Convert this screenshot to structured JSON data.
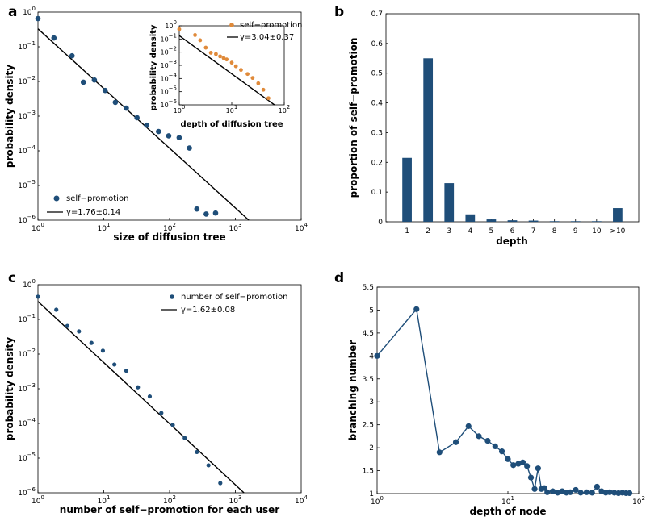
{
  "colors": {
    "blue": "#1f4e79",
    "orange": "#e08a3a",
    "fit": "#000000"
  },
  "chart_data": [
    {
      "panel": "a",
      "type": "scatter",
      "scale": "log-log",
      "xlabel": "size of diffusion tree",
      "ylabel": "probability density",
      "xlim": [
        1,
        10000
      ],
      "ylim": [
        1e-06,
        1
      ],
      "xticks": [
        {
          "v": 1,
          "base": "10",
          "exp": "0"
        },
        {
          "v": 10,
          "base": "10",
          "exp": "1"
        },
        {
          "v": 100,
          "base": "10",
          "exp": "2"
        },
        {
          "v": 1000,
          "base": "10",
          "exp": "3"
        },
        {
          "v": 10000,
          "base": "10",
          "exp": "4"
        }
      ],
      "yticks": [
        {
          "v": 1e-06,
          "base": "10",
          "exp": "−6"
        },
        {
          "v": 1e-05,
          "base": "10",
          "exp": "−5"
        },
        {
          "v": 0.0001,
          "base": "10",
          "exp": "−4"
        },
        {
          "v": 0.001,
          "base": "10",
          "exp": "−3"
        },
        {
          "v": 0.01,
          "base": "10",
          "exp": "−2"
        },
        {
          "v": 0.1,
          "base": "10",
          "exp": "−1"
        },
        {
          "v": 1,
          "base": "10",
          "exp": "0"
        }
      ],
      "series": [
        {
          "name": "self−promotion",
          "points": [
            [
              1,
              0.65
            ],
            [
              1.75,
              0.18
            ],
            [
              3.3,
              0.055
            ],
            [
              4.9,
              0.0095
            ],
            [
              7.2,
              0.011
            ],
            [
              10.5,
              0.0055
            ],
            [
              15,
              0.0025
            ],
            [
              22,
              0.0017
            ],
            [
              32,
              0.0009
            ],
            [
              45,
              0.00055
            ],
            [
              68,
              0.00036
            ],
            [
              97,
              0.00027
            ],
            [
              140,
              0.00024
            ],
            [
              200,
              0.00012
            ],
            [
              260,
              2.1e-06
            ],
            [
              360,
              1.5e-06
            ],
            [
              500,
              1.6e-06
            ]
          ]
        }
      ],
      "fit": {
        "label": "γ=1.76±0.14",
        "x": [
          1,
          1600
        ],
        "y": [
          0.33,
          1e-06
        ]
      },
      "legend": "bottom-left",
      "inset": {
        "type": "scatter",
        "scale": "log-log",
        "xlabel": "depth of diffusion tree",
        "ylabel": "probability density",
        "xlim": [
          1,
          100
        ],
        "ylim": [
          1e-06,
          1
        ],
        "xticks": [
          {
            "v": 1,
            "base": "10",
            "exp": "0"
          },
          {
            "v": 10,
            "base": "10",
            "exp": "1"
          },
          {
            "v": 100,
            "base": "10",
            "exp": "2"
          }
        ],
        "yticks": [
          {
            "v": 1e-06,
            "base": "10",
            "exp": "−6"
          },
          {
            "v": 1e-05,
            "base": "10",
            "exp": "−5"
          },
          {
            "v": 0.0001,
            "base": "10",
            "exp": "−4"
          },
          {
            "v": 0.001,
            "base": "10",
            "exp": "−3"
          },
          {
            "v": 0.01,
            "base": "10",
            "exp": "−2"
          },
          {
            "v": 0.1,
            "base": "10",
            "exp": "−1"
          },
          {
            "v": 1,
            "base": "10",
            "exp": "0"
          }
        ],
        "series": [
          {
            "name": "self−promotion",
            "points": [
              [
                1,
                0.55
              ],
              [
                2,
                0.2
              ],
              [
                2.5,
                0.08
              ],
              [
                3.2,
                0.022
              ],
              [
                4,
                0.009
              ],
              [
                5,
                0.0072
              ],
              [
                6,
                0.0048
              ],
              [
                7,
                0.0036
              ],
              [
                8,
                0.0028
              ],
              [
                10,
                0.0016
              ],
              [
                12,
                0.00085
              ],
              [
                15,
                0.00045
              ],
              [
                20,
                0.00022
              ],
              [
                25,
                0.00011
              ],
              [
                32,
                4.3e-05
              ],
              [
                40,
                1.4e-05
              ],
              [
                50,
                3.2e-06
              ]
            ]
          }
        ],
        "fit": {
          "label": "γ=3.04±0.37",
          "x": [
            1,
            65
          ],
          "y": [
            0.18,
            1e-06
          ]
        },
        "legend": "top-right"
      }
    },
    {
      "panel": "b",
      "type": "bar",
      "xlabel": "depth",
      "ylabel": "proportion of self−promotion",
      "categories": [
        "1",
        "2",
        "3",
        "4",
        "5",
        "6",
        "7",
        "8",
        "9",
        "10",
        ">10"
      ],
      "values": [
        0.215,
        0.55,
        0.13,
        0.025,
        0.008,
        0.005,
        0.004,
        0.002,
        0.002,
        0.002,
        0.046
      ],
      "ylim": [
        0,
        0.7
      ],
      "yticks": [
        "0",
        "0.1",
        "0.2",
        "0.3",
        "0.4",
        "0.5",
        "0.6",
        "0.7"
      ]
    },
    {
      "panel": "c",
      "type": "scatter",
      "scale": "log-log",
      "xlabel": "number of self−promotion for each user",
      "ylabel": "probability density",
      "xlim": [
        1,
        10000
      ],
      "ylim": [
        1e-06,
        1
      ],
      "xticks": [
        {
          "v": 1,
          "base": "10",
          "exp": "0"
        },
        {
          "v": 10,
          "base": "10",
          "exp": "1"
        },
        {
          "v": 100,
          "base": "10",
          "exp": "2"
        },
        {
          "v": 1000,
          "base": "10",
          "exp": "3"
        },
        {
          "v": 10000,
          "base": "10",
          "exp": "4"
        }
      ],
      "yticks": [
        {
          "v": 1e-06,
          "base": "10",
          "exp": "−6"
        },
        {
          "v": 1e-05,
          "base": "10",
          "exp": "−5"
        },
        {
          "v": 0.0001,
          "base": "10",
          "exp": "−4"
        },
        {
          "v": 0.001,
          "base": "10",
          "exp": "−3"
        },
        {
          "v": 0.01,
          "base": "10",
          "exp": "−2"
        },
        {
          "v": 0.1,
          "base": "10",
          "exp": "−1"
        },
        {
          "v": 1,
          "base": "10",
          "exp": "0"
        }
      ],
      "series": [
        {
          "name": "number of self−promotion",
          "points": [
            [
              1,
              0.45
            ],
            [
              1.9,
              0.19
            ],
            [
              2.8,
              0.065
            ],
            [
              4.2,
              0.045
            ],
            [
              6.5,
              0.021
            ],
            [
              9.7,
              0.0125
            ],
            [
              14.5,
              0.005
            ],
            [
              22,
              0.0033
            ],
            [
              33,
              0.0011
            ],
            [
              50,
              0.0006
            ],
            [
              75,
              0.0002
            ],
            [
              112,
              9e-05
            ],
            [
              170,
              3.8e-05
            ],
            [
              260,
              1.5e-05
            ],
            [
              390,
              6.2e-06
            ],
            [
              590,
              1.9e-06
            ]
          ]
        }
      ],
      "fit": {
        "label": "γ=1.62±0.08",
        "x": [
          1,
          1350
        ],
        "y": [
          0.33,
          1e-06
        ]
      },
      "legend": "top-right"
    },
    {
      "panel": "d",
      "type": "line",
      "scale": "log-x",
      "xlabel": "depth of node",
      "ylabel": "branching number",
      "xlim": [
        1,
        100
      ],
      "ylim": [
        1,
        5.5
      ],
      "xticks": [
        {
          "v": 1,
          "base": "10",
          "exp": "0"
        },
        {
          "v": 10,
          "base": "10",
          "exp": "1"
        },
        {
          "v": 100,
          "base": "10",
          "exp": "2"
        }
      ],
      "yticks": [
        "1",
        "1.5",
        "2",
        "2.5",
        "3",
        "3.5",
        "4",
        "4.5",
        "5",
        "5.5"
      ],
      "series": [
        {
          "name": "branching number",
          "points": [
            [
              1,
              4
            ],
            [
              2,
              5.02
            ],
            [
              3,
              1.9
            ],
            [
              4,
              2.12
            ],
            [
              5,
              2.47
            ],
            [
              6,
              2.25
            ],
            [
              7,
              2.15
            ],
            [
              8,
              2.03
            ],
            [
              9,
              1.92
            ],
            [
              10,
              1.75
            ],
            [
              11,
              1.62
            ],
            [
              12,
              1.65
            ],
            [
              13,
              1.68
            ],
            [
              14,
              1.6
            ],
            [
              15,
              1.35
            ],
            [
              16,
              1.1
            ],
            [
              17,
              1.55
            ],
            [
              18,
              1.1
            ],
            [
              19,
              1.12
            ],
            [
              20,
              1.03
            ],
            [
              22,
              1.05
            ],
            [
              24,
              1.02
            ],
            [
              26,
              1.05
            ],
            [
              28,
              1.02
            ],
            [
              30,
              1.03
            ],
            [
              33,
              1.08
            ],
            [
              36,
              1.02
            ],
            [
              40,
              1.03
            ],
            [
              44,
              1.02
            ],
            [
              48,
              1.15
            ],
            [
              52,
              1.05
            ],
            [
              56,
              1.02
            ],
            [
              60,
              1.03
            ],
            [
              65,
              1.02
            ],
            [
              70,
              1.01
            ],
            [
              75,
              1.02
            ],
            [
              80,
              1.01
            ],
            [
              85,
              1.01
            ]
          ]
        }
      ]
    }
  ],
  "panel_letters": [
    "a",
    "b",
    "c",
    "d"
  ]
}
